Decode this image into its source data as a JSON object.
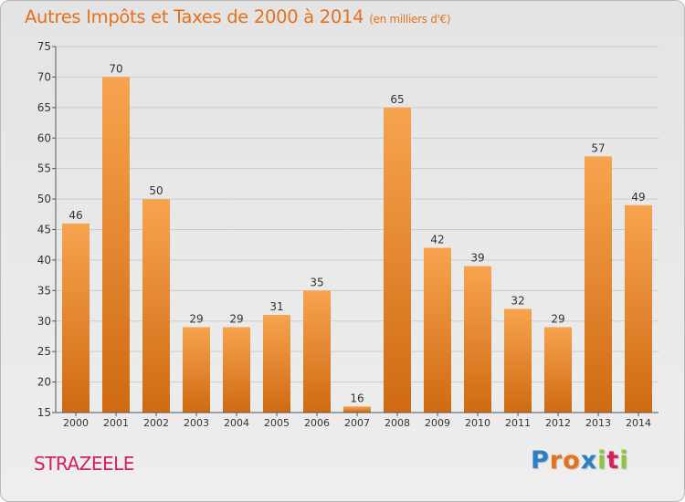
{
  "header": {
    "title": "Autres Impôts et Taxes de 2000 à 2014",
    "unit": "(en milliers d'€)"
  },
  "footer": {
    "commune": "STRAZEELE"
  },
  "logo": {
    "letters": [
      {
        "char": "P",
        "color": "#2a7fc9"
      },
      {
        "char": "r",
        "color": "#e8701a"
      },
      {
        "char": "o",
        "color": "#e8701a"
      },
      {
        "char": "x",
        "color": "#2a7fc9"
      },
      {
        "char": "i",
        "color": "#8cc63f"
      },
      {
        "char": "t",
        "color": "#d81e5b"
      },
      {
        "char": "i",
        "color": "#8cc63f"
      }
    ]
  },
  "chart_data": {
    "type": "bar",
    "title": "Autres Impôts et Taxes de 2000 à 2014",
    "subtitle": "(en milliers d'€)",
    "categories": [
      "2000",
      "2001",
      "2002",
      "2003",
      "2004",
      "2005",
      "2006",
      "2007",
      "2008",
      "2009",
      "2010",
      "2011",
      "2012",
      "2013",
      "2014"
    ],
    "values": [
      46,
      70,
      50,
      29,
      29,
      31,
      35,
      16,
      65,
      42,
      39,
      32,
      29,
      57,
      49
    ],
    "ylim": [
      15,
      75
    ],
    "yticks": [
      15,
      20,
      25,
      30,
      35,
      40,
      45,
      50,
      55,
      60,
      65,
      70,
      75
    ],
    "grid": true,
    "colors": {
      "bar_light": "#f7a44e",
      "bar_dark": "#cf6a12",
      "grid": "#cccccc",
      "axis": "#555555",
      "text": "#333333"
    }
  }
}
